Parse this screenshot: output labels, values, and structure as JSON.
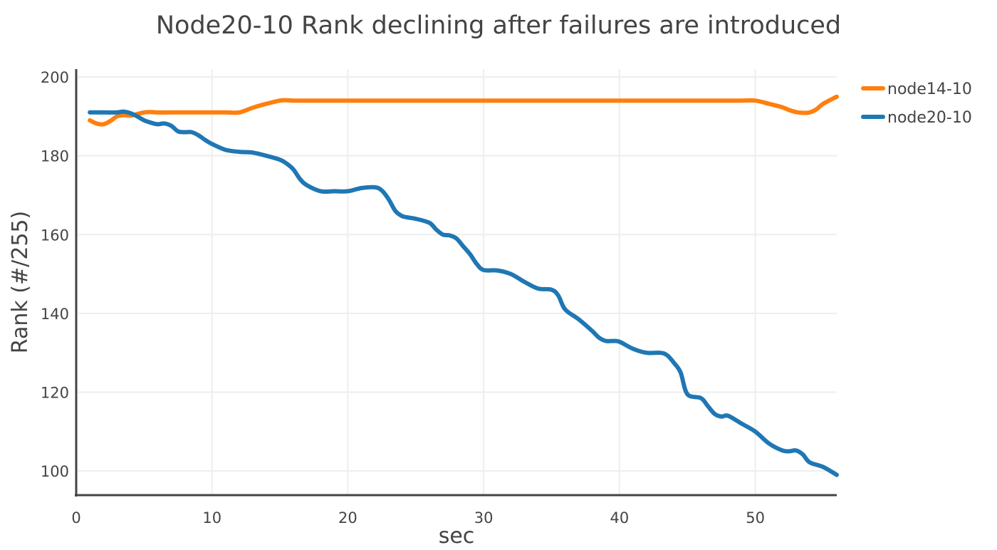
{
  "chart_data": {
    "type": "line",
    "title": "Node20-10 Rank declining after failures are introduced",
    "xlabel": "sec",
    "ylabel": "Rank (#/255)",
    "xlim": [
      0,
      56
    ],
    "ylim": [
      93.5,
      202
    ],
    "x_ticks": [
      0,
      10,
      20,
      30,
      40,
      50
    ],
    "y_ticks": [
      100,
      120,
      140,
      160,
      180,
      200
    ],
    "grid": true,
    "legend_position": "top-right",
    "series": [
      {
        "name": "node14-10",
        "color": "#ff7f0e",
        "x": [
          1,
          1.5,
          2,
          2.5,
          3,
          3.5,
          4,
          4.5,
          5,
          5.5,
          6,
          7,
          8,
          9,
          10,
          11,
          12,
          13,
          14,
          15,
          15.5,
          16,
          17,
          18,
          19,
          20,
          25,
          30,
          35,
          40,
          45,
          48,
          49,
          50,
          51,
          52,
          52.5,
          53,
          53.5,
          54,
          54.5,
          55,
          56
        ],
        "values": [
          189,
          188.2,
          188,
          188.8,
          190,
          190.3,
          190.2,
          190.6,
          191,
          191.1,
          191,
          191,
          191,
          191,
          191,
          191,
          191,
          192.2,
          193.2,
          194,
          194.1,
          194,
          194,
          194,
          194,
          194,
          194,
          194,
          194,
          194,
          194,
          194,
          194,
          194,
          193.2,
          192.3,
          191.6,
          191.1,
          190.9,
          191,
          191.8,
          193.2,
          195
        ]
      },
      {
        "name": "node20-10",
        "color": "#1f77b4",
        "x": [
          1,
          2,
          3,
          3.5,
          4,
          4.5,
          5,
          5.5,
          6,
          6.5,
          7,
          7.5,
          8,
          8.5,
          9,
          9.5,
          10,
          11,
          12,
          13,
          14,
          15,
          15.5,
          16,
          16.5,
          17,
          18,
          19,
          20,
          21,
          22,
          22.5,
          23,
          23.5,
          24,
          24.5,
          25,
          26,
          26.5,
          27,
          27.5,
          28,
          28.5,
          29,
          29.5,
          30,
          31,
          32,
          33,
          34,
          35,
          35.5,
          36,
          37,
          38,
          38.5,
          39,
          39.5,
          40,
          41,
          42,
          43,
          43.5,
          44,
          44.5,
          45,
          46,
          46.5,
          47,
          47.5,
          48,
          49,
          50,
          51,
          52,
          52.5,
          53,
          53.5,
          54,
          55,
          56
        ],
        "values": [
          191,
          191,
          191,
          191.2,
          190.8,
          190,
          189,
          188.4,
          188,
          188.2,
          187.6,
          186.2,
          186,
          186,
          185.2,
          184,
          183,
          181.5,
          181,
          180.8,
          180,
          179,
          178,
          176.5,
          174,
          172.5,
          171,
          171,
          171,
          171.8,
          172,
          171.2,
          169,
          166,
          164.7,
          164.3,
          164,
          163,
          161.3,
          160,
          159.8,
          159,
          157,
          155,
          152.5,
          151,
          150.9,
          150,
          148,
          146.3,
          146,
          144.5,
          141,
          138.5,
          135.5,
          133.8,
          133,
          133,
          132.8,
          131,
          130,
          130,
          129.4,
          127.5,
          125,
          119.5,
          118.5,
          116.5,
          114.5,
          113.8,
          114,
          112,
          110,
          107,
          105.2,
          105,
          105.2,
          104.2,
          102.2,
          101,
          99
        ]
      }
    ]
  }
}
